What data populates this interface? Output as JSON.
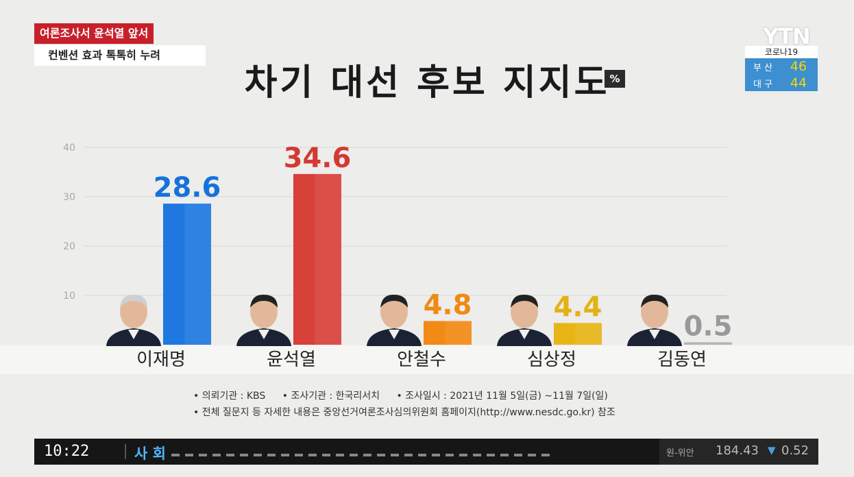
{
  "headline": {
    "line1": "여론조사서 윤석열 앞서",
    "line2": "컨벤션 효과 톡톡히 누려"
  },
  "broadcaster": {
    "logo": "YTN"
  },
  "covid": {
    "label": "코로나19",
    "regions": [
      {
        "name": "부 산",
        "count": "46"
      },
      {
        "name": "대 구",
        "count": "44"
      }
    ]
  },
  "chart_data": {
    "type": "bar",
    "title": "차기 대선 후보 지지도",
    "unit": "%",
    "categories": [
      "이재명",
      "윤석열",
      "안철수",
      "심상정",
      "김동연"
    ],
    "values": [
      28.6,
      34.6,
      4.8,
      4.4,
      0.5
    ],
    "value_labels": [
      "28.6",
      "34.6",
      "4.8",
      "4.4",
      "0.5"
    ],
    "colors": [
      "#1f78e0",
      "#d8403a",
      "#f28a15",
      "#e8b516",
      "#b5b5b5"
    ],
    "label_colors": [
      "#1572db",
      "#d23a32",
      "#ef8a12",
      "#e3b214",
      "#999999"
    ],
    "yticks": [
      "40",
      "30",
      "20",
      "10"
    ],
    "ylim": [
      0,
      40
    ],
    "grid": true
  },
  "notes": {
    "sponsor": "• 의뢰기관 : KBS",
    "pollster": "• 조사기관 : 한국리서치",
    "period": "• 조사일시 : 2021년 11월 5일(금) ~11월 7일(일)",
    "detail": "• 전체 질문지 등 자세한 내용은 중앙선거여론조사심의위원회 홈페이지(http://www.nesdc.go.kr) 참조"
  },
  "ticker": {
    "time": "10:22",
    "section": "사 회",
    "fx_label": "원-위안",
    "fx_value": "184.43",
    "fx_arrow": "▼",
    "fx_change": "0.52"
  }
}
